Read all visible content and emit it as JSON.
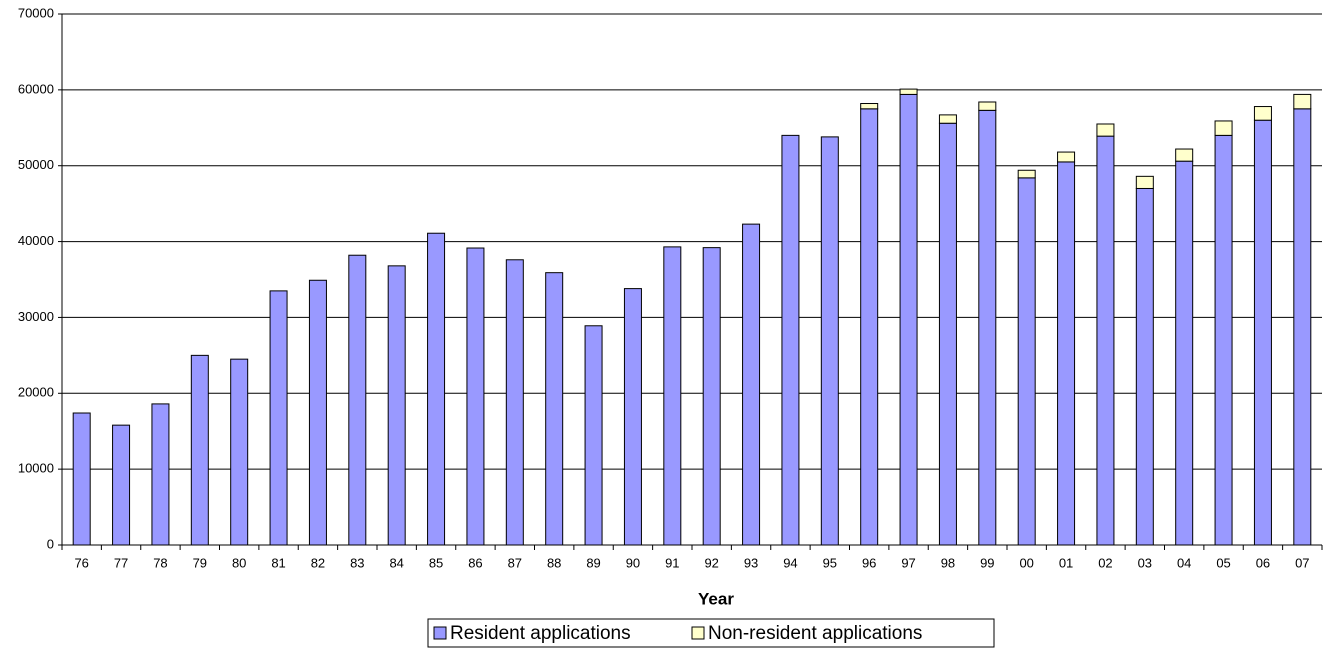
{
  "chart_data": {
    "type": "stacked_bar",
    "x_label": "Year",
    "categories": [
      "76",
      "77",
      "78",
      "79",
      "80",
      "81",
      "82",
      "83",
      "84",
      "85",
      "86",
      "87",
      "88",
      "89",
      "90",
      "91",
      "92",
      "93",
      "94",
      "95",
      "96",
      "97",
      "98",
      "99",
      "00",
      "01",
      "02",
      "03",
      "04",
      "05",
      "06",
      "07"
    ],
    "series": [
      {
        "name": "Resident applications",
        "color": "#9999ff",
        "values": [
          17400,
          15800,
          18600,
          25000,
          24500,
          33500,
          34900,
          38200,
          36800,
          41100,
          39150,
          37600,
          35900,
          28900,
          33800,
          39300,
          39200,
          42300,
          54000,
          53800,
          57500,
          59400,
          55600,
          57300,
          48400,
          50500,
          53900,
          47000,
          50600,
          54000,
          56000,
          57500
        ]
      },
      {
        "name": "Non-resident applications",
        "color": "#ffffcc",
        "values": [
          0,
          0,
          0,
          0,
          0,
          0,
          0,
          0,
          0,
          0,
          0,
          0,
          0,
          0,
          0,
          0,
          0,
          0,
          0,
          0,
          700,
          700,
          1100,
          1100,
          1000,
          1300,
          1600,
          1600,
          1600,
          1900,
          1800,
          1900
        ]
      }
    ],
    "ylim": [
      0,
      70000
    ],
    "yticks": [
      0,
      10000,
      20000,
      30000,
      40000,
      50000,
      60000,
      70000
    ],
    "grid": true
  }
}
